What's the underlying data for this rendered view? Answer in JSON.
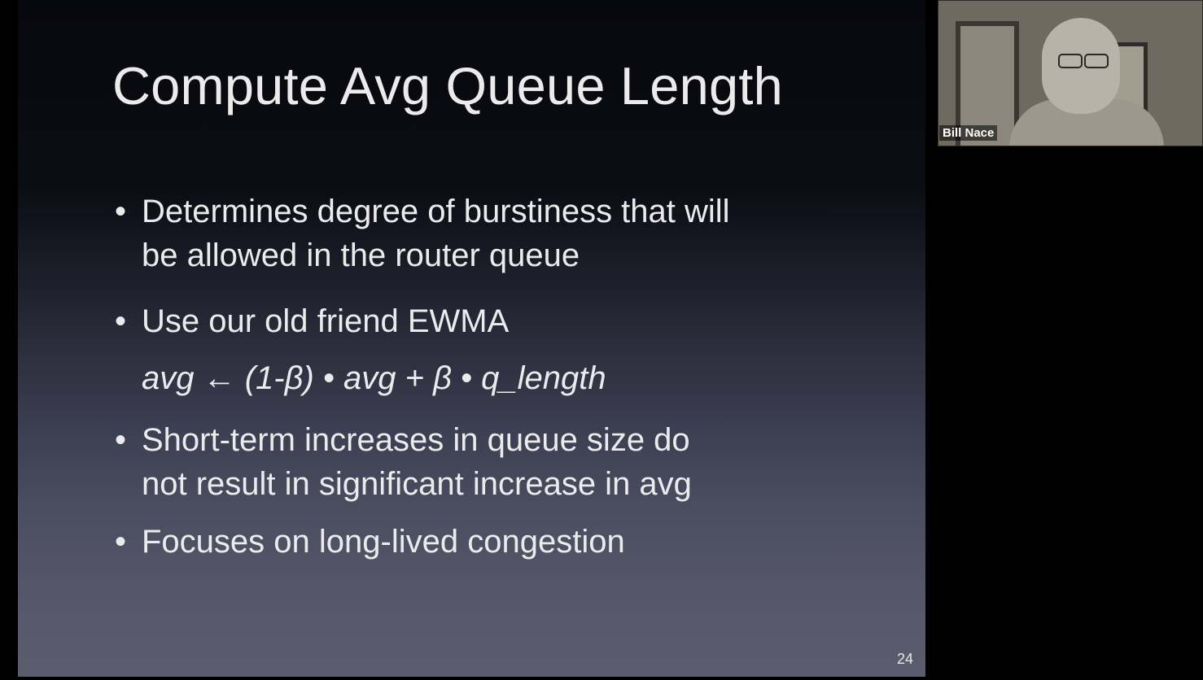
{
  "slide": {
    "title": "Compute Avg Queue Length",
    "bullets": [
      {
        "lines": [
          "Determines degree of burstiness that will",
          "be allowed in the router queue"
        ]
      },
      {
        "lines": [
          "Use our old friend EWMA"
        ]
      },
      {
        "lines": [
          "Short-term increases in queue size do",
          "not result in significant increase in avg"
        ]
      },
      {
        "lines": [
          "Focuses on long-lived congestion"
        ]
      }
    ],
    "bullet_symbol": "•",
    "formula": "avg ← (1-β) • avg + β • q_length",
    "slide_number": "24"
  },
  "participant": {
    "name": "Bill Nace"
  },
  "colors": {
    "text": "#ecebec",
    "background_top": "#07080d",
    "background_bottom": "#5b5c6e"
  }
}
